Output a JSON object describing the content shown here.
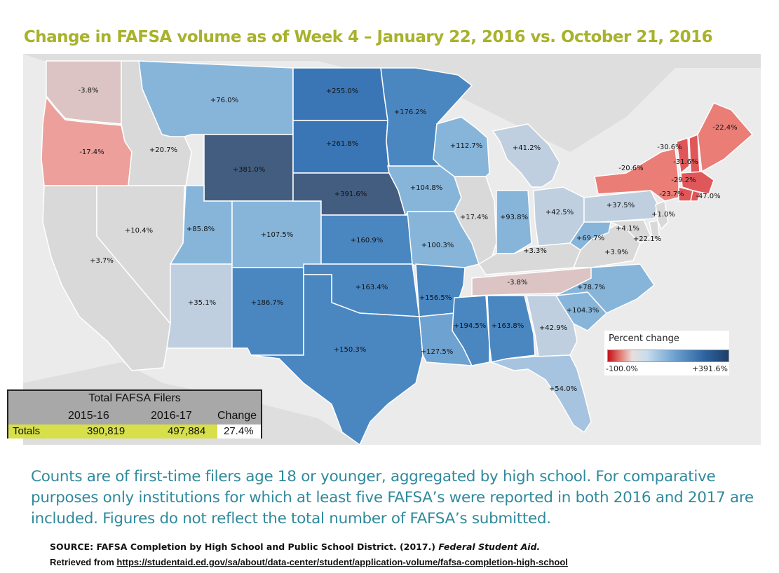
{
  "title": "Change in FAFSA volume as of Week 4 – January 22, 2016 vs. October 21, 2016",
  "map": {
    "colors": {
      "background": "#ebebeb",
      "neighbor": "#dedede",
      "gray": "#d9d9d9",
      "neg_light": "#dcc4c4",
      "neg_mid": "#eda09b",
      "neg_strong": "#ea7d76",
      "neg_deep": "#e0575a",
      "pos_pale": "#bfcfdf",
      "pos_light": "#a6c4df",
      "pos_mid": "#87b5da",
      "pos_med": "#6ea2d0",
      "pos_strong": "#4a87c1",
      "pos_deep": "#3a76b5",
      "pos_darkest": "#435d80"
    },
    "states": [
      {
        "id": "WA",
        "label": "-3.8%",
        "value": -3.8,
        "color": "neg_light"
      },
      {
        "id": "OR",
        "label": "-17.4%",
        "value": -17.4,
        "color": "neg_mid"
      },
      {
        "id": "CA",
        "label": "+3.7%",
        "value": 3.7,
        "color": "gray"
      },
      {
        "id": "NV",
        "label": "+10.4%",
        "value": 10.4,
        "color": "gray"
      },
      {
        "id": "ID",
        "label": "+20.7%",
        "value": 20.7,
        "color": "gray"
      },
      {
        "id": "MT",
        "label": "+76.0%",
        "value": 76.0,
        "color": "pos_mid"
      },
      {
        "id": "WY",
        "label": "+381.0%",
        "value": 381.0,
        "color": "pos_darkest"
      },
      {
        "id": "UT",
        "label": "+85.8%",
        "value": 85.8,
        "color": "pos_mid"
      },
      {
        "id": "AZ",
        "label": "+35.1%",
        "value": 35.1,
        "color": "pos_pale"
      },
      {
        "id": "CO",
        "label": "+107.5%",
        "value": 107.5,
        "color": "pos_mid"
      },
      {
        "id": "NM",
        "label": "+186.7%",
        "value": 186.7,
        "color": "pos_strong"
      },
      {
        "id": "ND",
        "label": "+255.0%",
        "value": 255.0,
        "color": "pos_deep"
      },
      {
        "id": "SD",
        "label": "+261.8%",
        "value": 261.8,
        "color": "pos_deep"
      },
      {
        "id": "NE",
        "label": "+391.6%",
        "value": 391.6,
        "color": "pos_darkest"
      },
      {
        "id": "KS",
        "label": "+160.9%",
        "value": 160.9,
        "color": "pos_strong"
      },
      {
        "id": "OK",
        "label": "+163.4%",
        "value": 163.4,
        "color": "pos_strong"
      },
      {
        "id": "TX",
        "label": "+150.3%",
        "value": 150.3,
        "color": "pos_strong"
      },
      {
        "id": "MN",
        "label": "+176.2%",
        "value": 176.2,
        "color": "pos_strong"
      },
      {
        "id": "IA",
        "label": "+104.8%",
        "value": 104.8,
        "color": "pos_mid"
      },
      {
        "id": "MO",
        "label": "+100.3%",
        "value": 100.3,
        "color": "pos_mid"
      },
      {
        "id": "AR",
        "label": "+156.5%",
        "value": 156.5,
        "color": "pos_strong"
      },
      {
        "id": "LA",
        "label": "+127.5%",
        "value": 127.5,
        "color": "pos_med"
      },
      {
        "id": "WI",
        "label": "+112.7%",
        "value": 112.7,
        "color": "pos_mid"
      },
      {
        "id": "IL",
        "label": "+17.4%",
        "value": 17.4,
        "color": "gray"
      },
      {
        "id": "MI",
        "label": "+41.2%",
        "value": 41.2,
        "color": "pos_pale"
      },
      {
        "id": "IN",
        "label": "+93.8%",
        "value": 93.8,
        "color": "pos_mid"
      },
      {
        "id": "OH",
        "label": "+42.5%",
        "value": 42.5,
        "color": "pos_pale"
      },
      {
        "id": "KY",
        "label": "+3.3%",
        "value": 3.3,
        "color": "gray"
      },
      {
        "id": "TN",
        "label": "-3.8%",
        "value": -3.8,
        "color": "neg_light"
      },
      {
        "id": "MS",
        "label": "+194.5%",
        "value": 194.5,
        "color": "pos_strong"
      },
      {
        "id": "AL",
        "label": "+163.8%",
        "value": 163.8,
        "color": "pos_strong"
      },
      {
        "id": "GA",
        "label": "+42.9%",
        "value": 42.9,
        "color": "pos_pale"
      },
      {
        "id": "FL",
        "label": "+54.0%",
        "value": 54.0,
        "color": "pos_light"
      },
      {
        "id": "SC",
        "label": "+104.3%",
        "value": 104.3,
        "color": "pos_mid"
      },
      {
        "id": "NC",
        "label": "+78.7%",
        "value": 78.7,
        "color": "pos_mid"
      },
      {
        "id": "VA",
        "label": "+3.9%",
        "value": 3.9,
        "color": "gray"
      },
      {
        "id": "WV",
        "label": "+69.7%",
        "value": 69.7,
        "color": "pos_mid"
      },
      {
        "id": "PA",
        "label": "+37.5%",
        "value": 37.5,
        "color": "pos_pale"
      },
      {
        "id": "MD",
        "label": "+4.1%",
        "value": 4.1,
        "color": "gray"
      },
      {
        "id": "DE",
        "label": "+22.1%",
        "value": 22.1,
        "color": "gray"
      },
      {
        "id": "NJ",
        "label": "+1.0%",
        "value": 1.0,
        "color": "gray"
      },
      {
        "id": "NY",
        "label": "-20.6%",
        "value": -20.6,
        "color": "neg_strong"
      },
      {
        "id": "VT",
        "label": "-30.6%",
        "value": -30.6,
        "color": "neg_deep"
      },
      {
        "id": "NH",
        "label": "-31.6%",
        "value": -31.6,
        "color": "neg_deep"
      },
      {
        "id": "ME",
        "label": "-22.4%",
        "value": -22.4,
        "color": "neg_strong"
      },
      {
        "id": "MA",
        "label": "-29.2%",
        "value": -29.2,
        "color": "neg_deep"
      },
      {
        "id": "CT",
        "label": "-23.7%",
        "value": -23.7,
        "color": "neg_deep"
      },
      {
        "id": "RI",
        "label": "-47.0%",
        "value": -47.0,
        "color": "neg_deep"
      }
    ]
  },
  "legend": {
    "title": "Percent change",
    "min_label": "-100.0%",
    "max_label": "+391.6%",
    "min_color": "#c1121a",
    "max_color": "#1d3d67"
  },
  "totals": {
    "header": "Total FAFSA Filers",
    "col1": "2015-16",
    "col2": "2016-17",
    "col3": "Change",
    "row_label": "Totals",
    "v1": "390,819",
    "v2": "497,884",
    "change": "27.4%"
  },
  "note": "Counts are of first-time filers age 18 or younger, aggregated by high school. For comparative purposes only institutions for which at least five FAFSA’s were reported in both 2016 and 2017 are included. Figures do not reflect the total number of FAFSA’s submitted.",
  "source": {
    "prefix": "SOURCE: FAFSA Completion by High School and Public School District. (2017.) ",
    "italic": "Federal Student Aid.",
    "retrieved_prefix": "Retrieved from ",
    "url": "https://studentaid.ed.gov/sa/about/data-center/student/application-volume/fafsa-completion-high-school"
  }
}
